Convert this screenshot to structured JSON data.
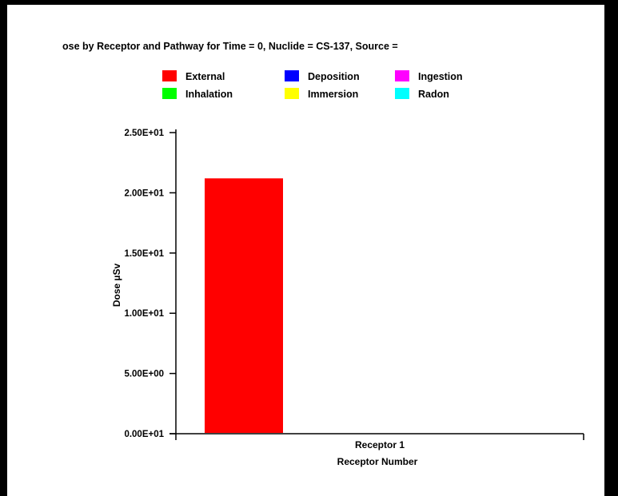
{
  "chart_data": {
    "type": "bar",
    "title": "ose by Receptor and Pathway for Time = 0, Nuclide = CS-137, Source =",
    "xlabel": "Receptor Number",
    "ylabel": "Dose µSv",
    "categories": [
      "Receptor 1"
    ],
    "series": [
      {
        "name": "External",
        "color": "#ff0000",
        "values": [
          21.2
        ]
      },
      {
        "name": "Deposition",
        "color": "#0000ff",
        "values": [
          0
        ]
      },
      {
        "name": "Ingestion",
        "color": "#ff00ff",
        "values": [
          0
        ]
      },
      {
        "name": "Inhalation",
        "color": "#00ff00",
        "values": [
          0
        ]
      },
      {
        "name": "Immersion",
        "color": "#ffff00",
        "values": [
          0
        ]
      },
      {
        "name": "Radon",
        "color": "#00ffff",
        "values": [
          0
        ]
      }
    ],
    "ylim": [
      0,
      25
    ],
    "yticks": [
      {
        "value": 0,
        "label": "0.00E+01"
      },
      {
        "value": 5,
        "label": "5.00E+00"
      },
      {
        "value": 10,
        "label": "1.00E+01"
      },
      {
        "value": 15,
        "label": "1.50E+01"
      },
      {
        "value": 20,
        "label": "2.00E+01"
      },
      {
        "value": 25,
        "label": "2.50E+01"
      }
    ],
    "legend_position": "top",
    "grid": false
  }
}
